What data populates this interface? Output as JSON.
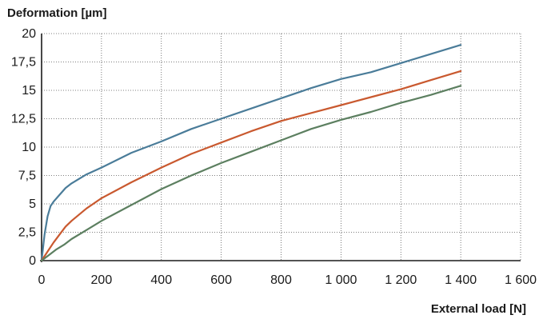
{
  "chart_data": {
    "type": "line",
    "title": "",
    "ylabel": "Deformation [µm]",
    "xlabel": "External load [N]",
    "xlim": [
      0,
      1600
    ],
    "ylim": [
      0,
      20
    ],
    "x_ticks": [
      0,
      200,
      400,
      600,
      800,
      1000,
      1200,
      1400,
      1600
    ],
    "x_tick_labels": [
      "0",
      "200",
      "400",
      "600",
      "800",
      "1 000",
      "1 200",
      "1 400",
      "1 600"
    ],
    "y_ticks": [
      0,
      2.5,
      5,
      7.5,
      10,
      12.5,
      15,
      17.5,
      20
    ],
    "y_tick_labels": [
      "0",
      "2,5",
      "5",
      "7,5",
      "10",
      "12,5",
      "15",
      "17,5",
      "20"
    ],
    "grid": true,
    "legend": "none",
    "series": [
      {
        "color": "#4a7c99",
        "x": [
          0,
          10,
          20,
          30,
          40,
          60,
          80,
          100,
          150,
          200,
          300,
          400,
          500,
          600,
          700,
          800,
          900,
          1000,
          1100,
          1200,
          1300,
          1400
        ],
        "values": [
          0,
          2.3,
          3.9,
          4.8,
          5.2,
          5.8,
          6.4,
          6.8,
          7.6,
          8.2,
          9.5,
          10.5,
          11.6,
          12.5,
          13.4,
          14.3,
          15.2,
          16.0,
          16.6,
          17.4,
          18.2,
          19.0
        ]
      },
      {
        "color": "#c9592f",
        "x": [
          0,
          20,
          40,
          60,
          80,
          100,
          150,
          200,
          300,
          400,
          500,
          600,
          700,
          800,
          900,
          1000,
          1100,
          1200,
          1300,
          1400
        ],
        "values": [
          0,
          0.8,
          1.6,
          2.3,
          3.0,
          3.5,
          4.6,
          5.5,
          6.9,
          8.2,
          9.4,
          10.4,
          11.4,
          12.3,
          13.0,
          13.7,
          14.4,
          15.1,
          15.9,
          16.7
        ]
      },
      {
        "color": "#5c7f60",
        "x": [
          0,
          25,
          50,
          75,
          100,
          150,
          200,
          300,
          400,
          500,
          600,
          700,
          800,
          900,
          1000,
          1100,
          1200,
          1300,
          1400
        ],
        "values": [
          0,
          0.5,
          1.0,
          1.4,
          1.9,
          2.7,
          3.5,
          4.9,
          6.3,
          7.5,
          8.6,
          9.6,
          10.6,
          11.6,
          12.4,
          13.1,
          13.9,
          14.6,
          15.4
        ]
      }
    ]
  }
}
